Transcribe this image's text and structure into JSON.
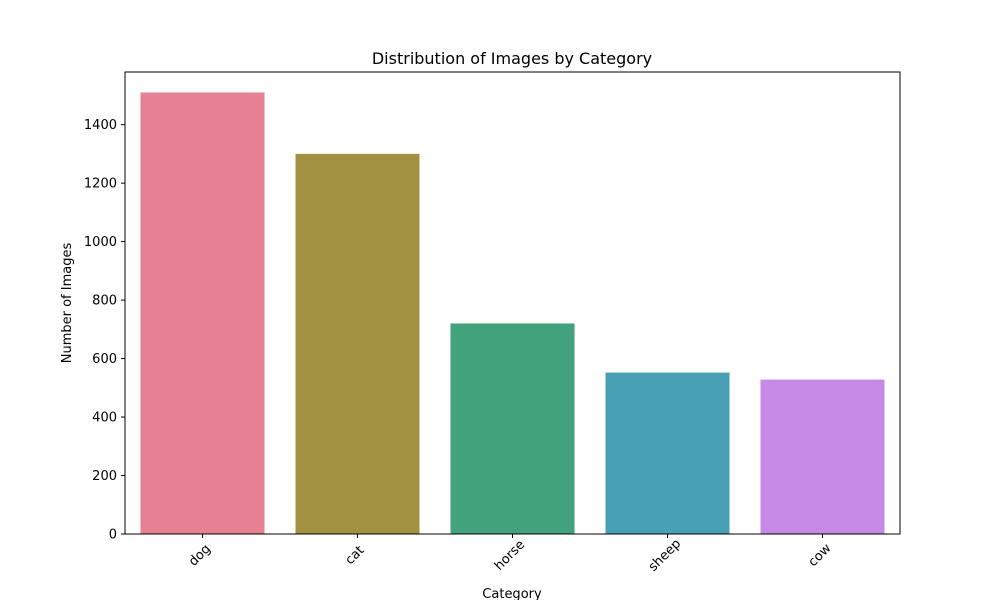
{
  "chart_data": {
    "type": "bar",
    "title": "Distribution of Images by Category",
    "xlabel": "Category",
    "ylabel": "Number of Images",
    "categories": [
      "dog",
      "cat",
      "horse",
      "sheep",
      "cow"
    ],
    "values": [
      1510,
      1300,
      720,
      552,
      528
    ],
    "colors": [
      "#e68193",
      "#a19141",
      "#42a27b",
      "#48a0b5",
      "#c68ae6"
    ],
    "ylim": [
      0,
      1580
    ],
    "yticks": [
      0,
      200,
      400,
      600,
      800,
      1000,
      1200,
      1400
    ],
    "grid": false,
    "legend": "none"
  }
}
